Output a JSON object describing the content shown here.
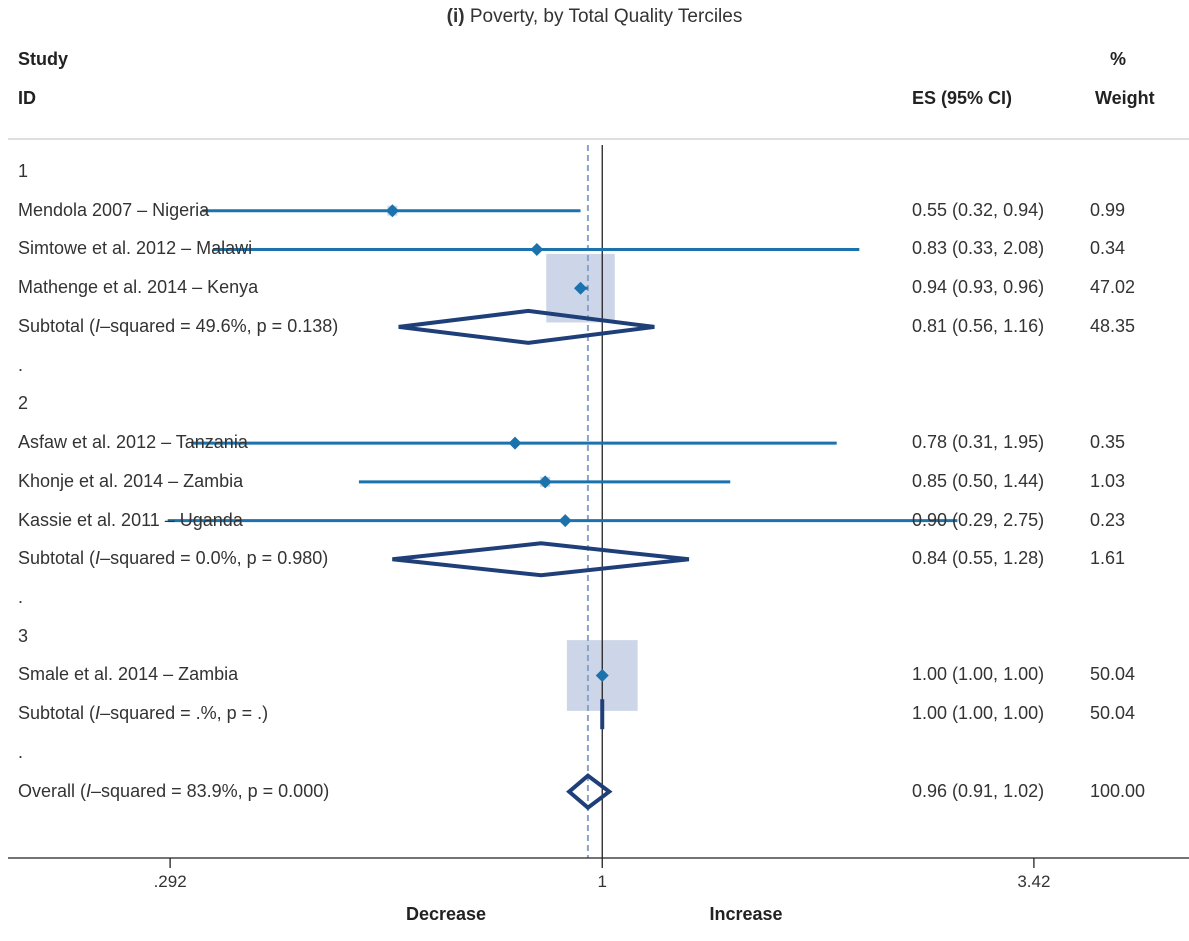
{
  "title": {
    "prefix": "(i)",
    "text": "Poverty, by Total Quality Terciles"
  },
  "headers": {
    "study_line1": "Study",
    "study_line2": "ID",
    "es": "ES (95% CI)",
    "weight_line1": "%",
    "weight_line2": "Weight"
  },
  "colors": {
    "ci_line": "#1b72ad",
    "marker": "#1b72ad",
    "weight_box": "#ccd6e8",
    "diamond": "#1f3f78",
    "null_line": "#222222",
    "overall_line": "#8aa3c9"
  },
  "chart_data": {
    "type": "forest",
    "xscale": "log",
    "xticks": [
      ".292",
      "1",
      "3.42"
    ],
    "tick_values": [
      0.292,
      1,
      3.42
    ],
    "xlim": [
      0.184,
      5.32
    ],
    "null_value": 1,
    "overall_estimate": 0.96,
    "direction_left": "Decrease",
    "direction_right": "Increase",
    "rows": [
      {
        "kind": "group",
        "label": "1"
      },
      {
        "kind": "study",
        "label": "Mendola 2007 – Nigeria",
        "es": 0.55,
        "lo": 0.32,
        "hi": 0.94,
        "es_text": "0.55 (0.32, 0.94)",
        "weight": 0.99,
        "weight_text": "0.99"
      },
      {
        "kind": "study",
        "label": "Simtowe et al. 2012 – Malawi",
        "es": 0.83,
        "lo": 0.33,
        "hi": 2.08,
        "es_text": "0.83 (0.33, 2.08)",
        "weight": 0.34,
        "weight_text": "0.34"
      },
      {
        "kind": "study",
        "label": "Mathenge et al. 2014 – Kenya",
        "es": 0.94,
        "lo": 0.93,
        "hi": 0.96,
        "es_text": "0.94 (0.93, 0.96)",
        "weight": 47.02,
        "weight_text": "47.02"
      },
      {
        "kind": "subtotal",
        "label_pre": "Subtotal  (",
        "label_i": "I",
        "label_post": "–squared = 49.6%, p = 0.138)",
        "es": 0.81,
        "lo": 0.56,
        "hi": 1.16,
        "es_text": "0.81 (0.56, 1.16)",
        "weight_text": "48.35"
      },
      {
        "kind": "spacer",
        "label": "."
      },
      {
        "kind": "group",
        "label": "2"
      },
      {
        "kind": "study",
        "label": "Asfaw et al. 2012 – Tanzania",
        "es": 0.78,
        "lo": 0.31,
        "hi": 1.95,
        "es_text": "0.78 (0.31, 1.95)",
        "weight": 0.35,
        "weight_text": "0.35"
      },
      {
        "kind": "study",
        "label": "Khonje et al. 2014 – Zambia",
        "es": 0.85,
        "lo": 0.5,
        "hi": 1.44,
        "es_text": "0.85 (0.50, 1.44)",
        "weight": 1.03,
        "weight_text": "1.03"
      },
      {
        "kind": "study",
        "label": "Kassie et al. 2011 – Uganda",
        "es": 0.9,
        "lo": 0.29,
        "hi": 2.75,
        "es_text": "0.90 (0.29, 2.75)",
        "weight": 0.23,
        "weight_text": "0.23"
      },
      {
        "kind": "subtotal",
        "label_pre": "Subtotal  (",
        "label_i": "I",
        "label_post": "–squared = 0.0%, p = 0.980)",
        "es": 0.84,
        "lo": 0.55,
        "hi": 1.28,
        "es_text": "0.84 (0.55, 1.28)",
        "weight_text": "1.61"
      },
      {
        "kind": "spacer",
        "label": "."
      },
      {
        "kind": "group",
        "label": "3"
      },
      {
        "kind": "study",
        "label": "Smale et al. 2014 – Zambia",
        "es": 1.0,
        "lo": 1.0,
        "hi": 1.0,
        "es_text": "1.00 (1.00, 1.00)",
        "weight": 50.04,
        "weight_text": "50.04"
      },
      {
        "kind": "subtotal",
        "label_pre": "Subtotal  (",
        "label_i": "I",
        "label_post": "–squared = .%, p = .)",
        "es": 1.0,
        "lo": 1.0,
        "hi": 1.0,
        "es_text": "1.00 (1.00, 1.00)",
        "weight_text": "50.04"
      },
      {
        "kind": "spacer",
        "label": "."
      },
      {
        "kind": "overall",
        "label_pre": "Overall  (",
        "label_i": "I",
        "label_post": "–squared = 83.9%, p = 0.000)",
        "es": 0.96,
        "lo": 0.91,
        "hi": 1.02,
        "es_text": "0.96 (0.91, 1.02)",
        "weight_text": "100.00"
      }
    ]
  }
}
